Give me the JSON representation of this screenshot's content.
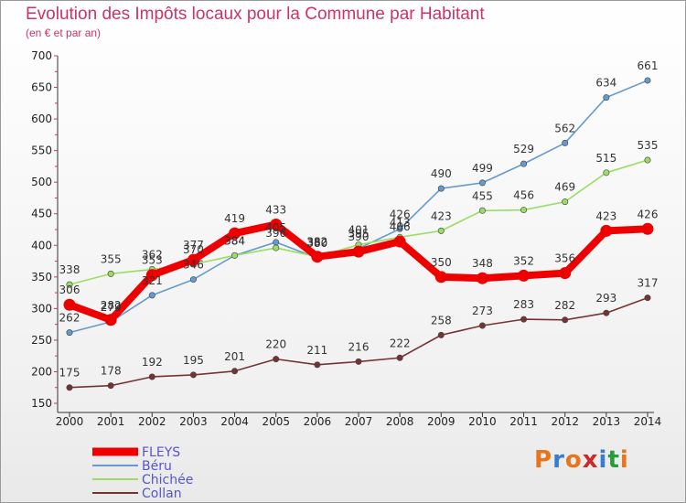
{
  "header": {
    "title": "Evolution des Impôts locaux pour la Commune par Habitant",
    "subtitle": "(en € et par an)"
  },
  "logo": {
    "text": "Proxiti",
    "colors": [
      "#e8751a",
      "#3a7bd5",
      "#e8751a",
      "#cc2a2a",
      "#3a7bd5",
      "#2a9b3a",
      "#e8751a"
    ]
  },
  "chart_data": {
    "type": "line",
    "x": [
      2000,
      2001,
      2002,
      2003,
      2004,
      2005,
      2006,
      2007,
      2008,
      2009,
      2010,
      2011,
      2012,
      2013,
      2014
    ],
    "ylim": [
      150,
      700
    ],
    "yticks": [
      150,
      200,
      250,
      300,
      350,
      400,
      450,
      500,
      550,
      600,
      650,
      700
    ],
    "grid": false,
    "legend_position": "bottom-left",
    "series": [
      {
        "name": "FLEYS",
        "color": "#ee0000",
        "values": [
          306,
          282,
          353,
          377,
          419,
          433,
          382,
          390,
          406,
          350,
          348,
          352,
          356,
          423,
          426
        ]
      },
      {
        "name": "Béru",
        "color": "#6699cc",
        "values": [
          262,
          279,
          321,
          346,
          384,
          405,
          380,
          395,
          426,
          490,
          499,
          529,
          562,
          634,
          661
        ]
      },
      {
        "name": "Chichée",
        "color": "#99dd66",
        "values": [
          338,
          355,
          362,
          370,
          384,
          396,
          382,
          401,
          413,
          423,
          455,
          456,
          469,
          515,
          535
        ]
      },
      {
        "name": "Collan",
        "color": "#773333",
        "values": [
          175,
          178,
          192,
          195,
          201,
          220,
          211,
          216,
          222,
          258,
          273,
          283,
          282,
          293,
          317
        ]
      }
    ]
  }
}
